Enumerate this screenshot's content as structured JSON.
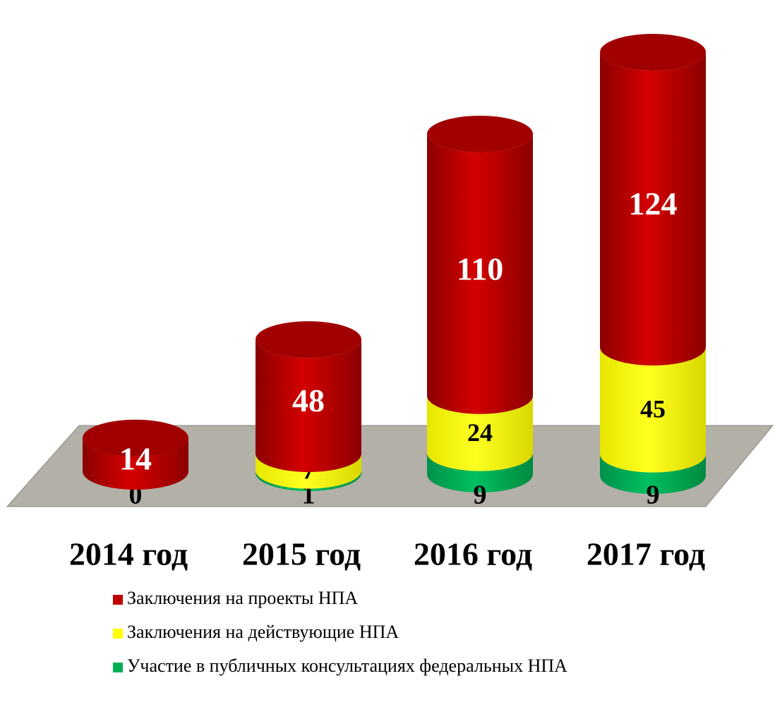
{
  "chart_data": {
    "type": "bar",
    "stacked": true,
    "categories": [
      "2014 год",
      "2015 год",
      "2016 год",
      "2017 год"
    ],
    "series": [
      {
        "name": "Участие в публичных консультациях федеральных НПА",
        "color": "#00b050",
        "values": [
          0,
          1,
          9,
          9
        ]
      },
      {
        "name": "Заключения на действующие НПА",
        "color": "#ffff00",
        "values": [
          null,
          7,
          24,
          45
        ]
      },
      {
        "name": "Заключения на проекты НПА",
        "color": "#c00000",
        "values": [
          14,
          48,
          110,
          124
        ]
      }
    ]
  }
}
